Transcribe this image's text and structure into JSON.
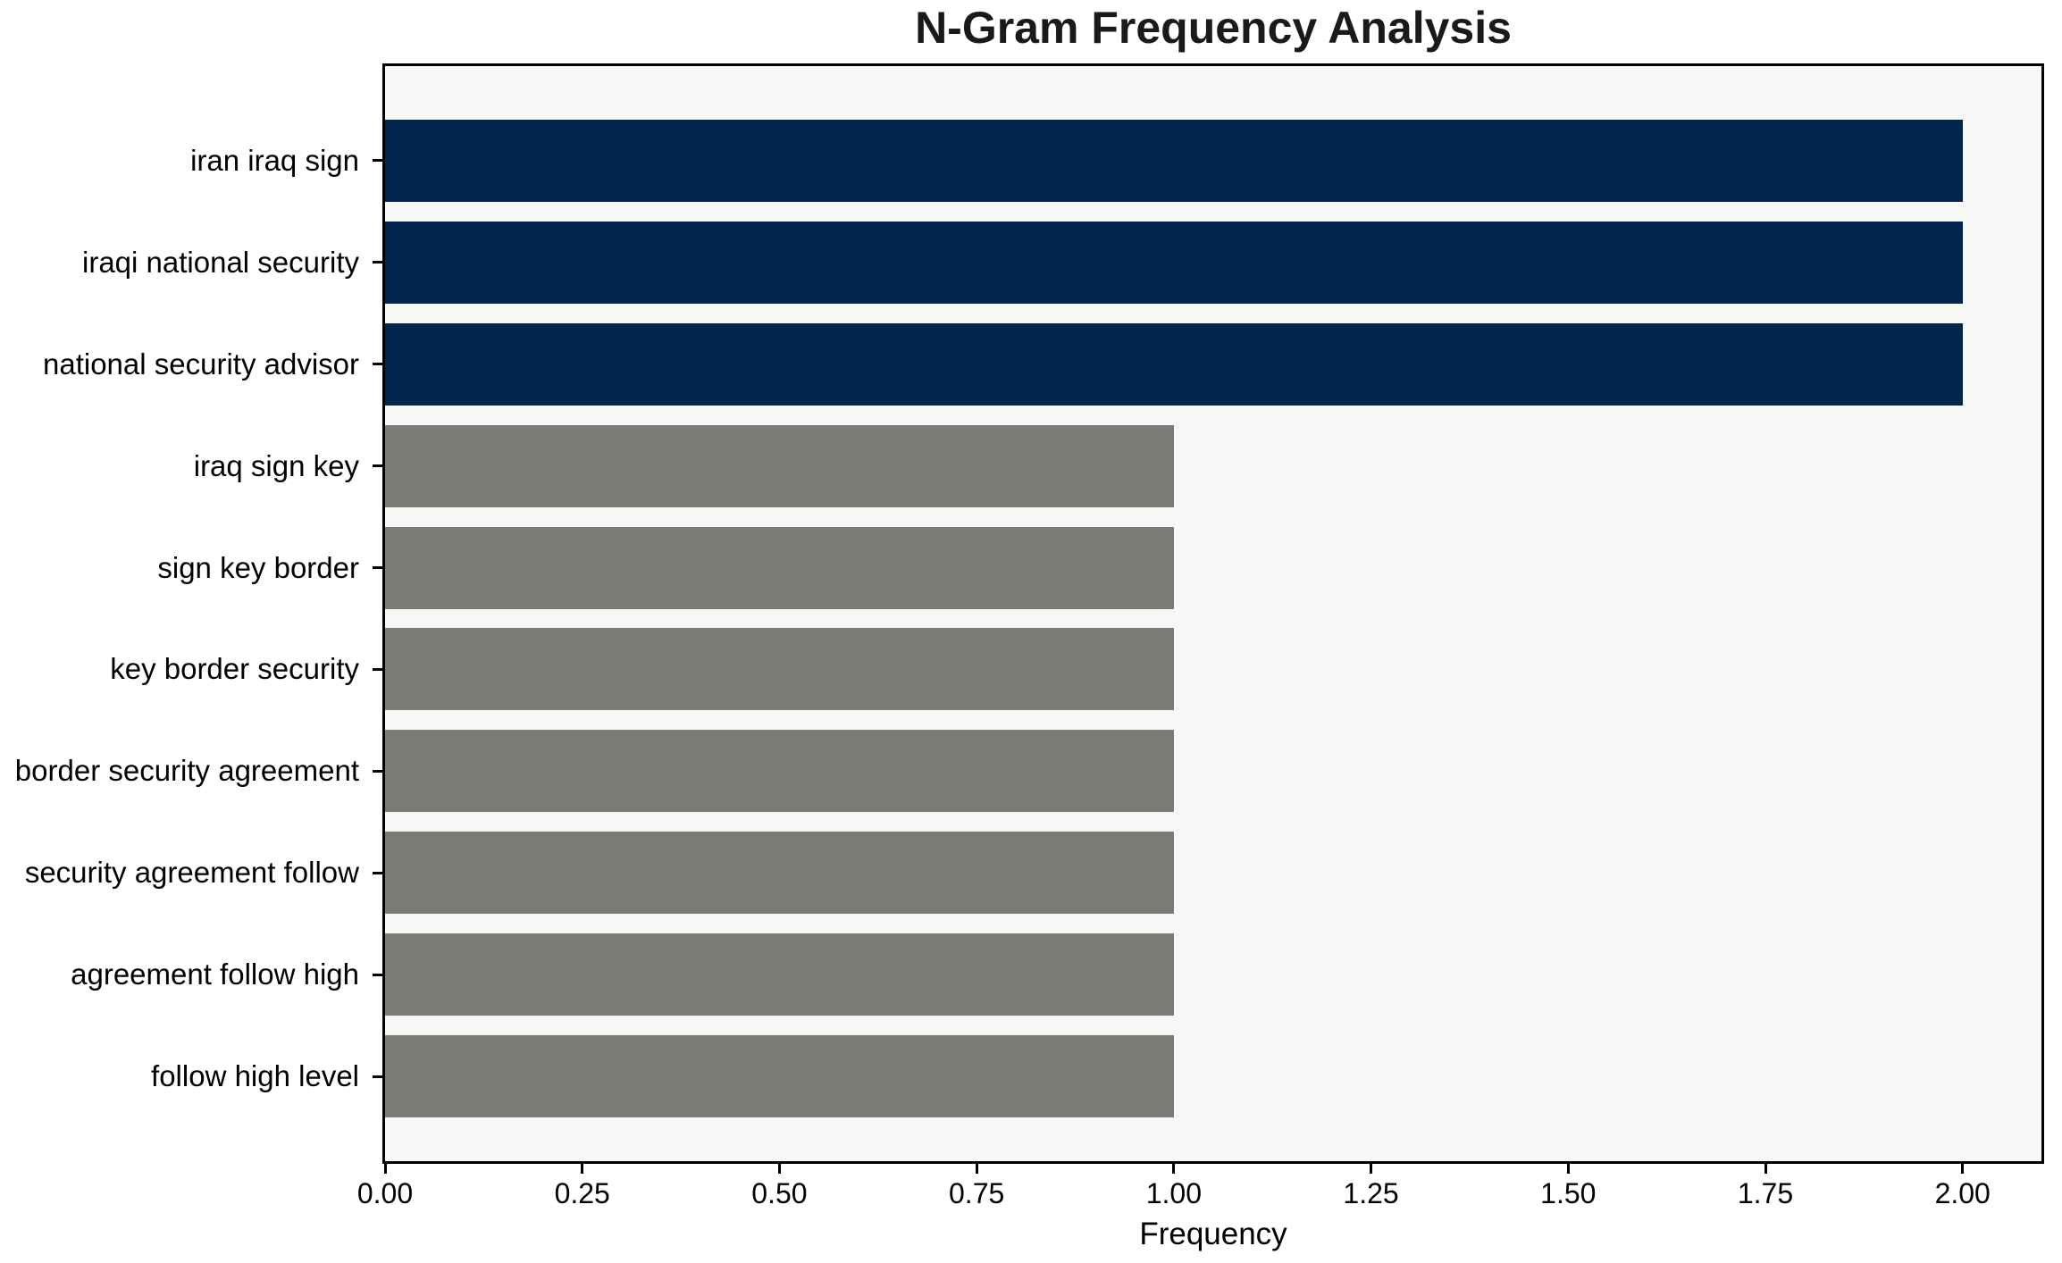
{
  "chart_data": {
    "type": "bar",
    "orientation": "horizontal",
    "title": "N-Gram Frequency Analysis",
    "xlabel": "Frequency",
    "ylabel": "",
    "categories": [
      "iran iraq sign",
      "iraqi national security",
      "national security advisor",
      "iraq sign key",
      "sign key border",
      "key border security",
      "border security agreement",
      "security agreement follow",
      "agreement follow high",
      "follow high level"
    ],
    "values": [
      2,
      2,
      2,
      1,
      1,
      1,
      1,
      1,
      1,
      1
    ],
    "bar_colors": [
      "#02254d",
      "#02254d",
      "#02254d",
      "#7b7a76",
      "#7b7a76",
      "#7b7a76",
      "#7b7a76",
      "#7b7a76",
      "#7b7a76",
      "#7b7a76"
    ],
    "x_ticks": [
      "0.00",
      "0.25",
      "0.50",
      "0.75",
      "1.00",
      "1.25",
      "1.50",
      "1.75",
      "2.00"
    ],
    "x_tick_values": [
      0,
      0.25,
      0.5,
      0.75,
      1.0,
      1.25,
      1.5,
      1.75,
      2.0
    ],
    "xlim": [
      0,
      2.1
    ],
    "grid": false,
    "legend": false,
    "colors": {
      "highlight_bar": "#02254d",
      "base_bar": "#7b7a76",
      "plot_background": "#f7f7f5",
      "figure_background": "#ffffff",
      "spine": "#000000",
      "text": "#000000"
    }
  }
}
